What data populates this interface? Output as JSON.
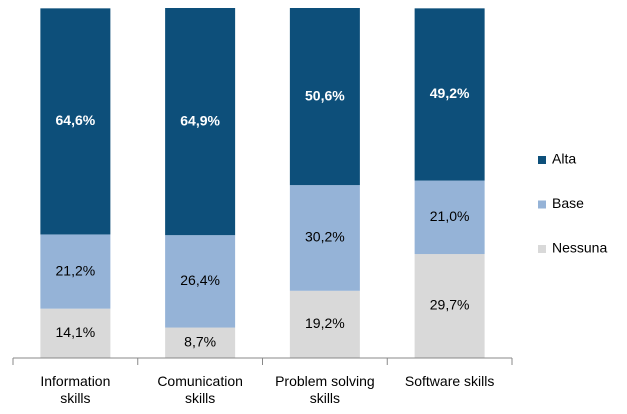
{
  "chart_data": {
    "type": "stacked_bar",
    "categories": [
      "Information skills",
      "Comunication skills",
      "Problem solving skills",
      "Software skills"
    ],
    "series": [
      {
        "name": "Nessuna",
        "color": "#d9d9d9",
        "values": [
          14.1,
          8.7,
          19.2,
          29.7
        ],
        "value_labels": [
          "14,1%",
          "8,7%",
          "19,2%",
          "29,7%"
        ]
      },
      {
        "name": "Base",
        "color": "#95b3d7",
        "values": [
          21.2,
          26.4,
          30.2,
          21.0
        ],
        "value_labels": [
          "21,2%",
          "26,4%",
          "30,2%",
          "21,0%"
        ]
      },
      {
        "name": "Alta",
        "color": "#0d4f7a",
        "values": [
          64.6,
          64.9,
          50.6,
          49.2
        ],
        "value_labels": [
          "64,6%",
          "64,9%",
          "50,6%",
          "49,2%"
        ]
      }
    ],
    "ylim": [
      0,
      100
    ],
    "legend": "right"
  }
}
